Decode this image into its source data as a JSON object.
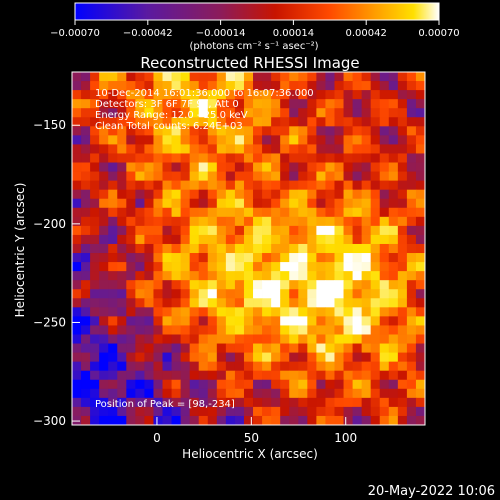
{
  "chart_data": {
    "type": "heatmap",
    "title": "Reconstructed RHESSI Image",
    "xlabel": "Heliocentric X (arcsec)",
    "ylabel": "Heliocentric Y (arcsec)",
    "xlim": [
      -45,
      142
    ],
    "ylim": [
      -302,
      -123
    ],
    "x_ticks": [
      0,
      50,
      100
    ],
    "x_tick_labels": [
      "0",
      "50",
      "100"
    ],
    "y_ticks": [
      -150,
      -200,
      -250,
      -300
    ],
    "y_tick_labels": [
      "−150",
      "−200",
      "−250",
      "−300"
    ],
    "colorbar": {
      "range": [
        -0.0007,
        0.0007
      ],
      "ticks": [
        -0.0007,
        -0.00042,
        -0.00014,
        0.00014,
        0.00042,
        0.0007
      ],
      "tick_labels": [
        "−0.00070",
        "−0.00042",
        "−0.00014",
        "0.00014",
        "0.00042",
        "0.00070"
      ],
      "unit_label": "(photons cm⁻² s⁻¹ asec⁻²)",
      "colormap": [
        "#0000ff",
        "#5b1aa0",
        "#8c1c5a",
        "#c81400",
        "#ff4a00",
        "#ff9a00",
        "#ffe000",
        "#ffffff"
      ]
    },
    "annotations": [
      "10-Dec-2014 16:01:36.000 to 16:07:36.000",
      "Detectors: 3F 6F 7F 9F, Att 0",
      "Energy Range: 12.0 - 25.0 keV",
      "Clean     Total counts: 6.24E+03"
    ],
    "peak_label": "Position of Peak = [98,-234]",
    "peak_position": [
      98,
      -234
    ],
    "bright_sources": [
      {
        "x": 30,
        "y": -230,
        "relative_intensity": 0.95
      },
      {
        "x": 98,
        "y": -234,
        "relative_intensity": 1.0
      },
      {
        "x": 20,
        "y": -135,
        "relative_intensity": 0.75
      }
    ],
    "grid": false,
    "legend": "none"
  },
  "footer": {
    "timestamp": "20-May-2022 10:06"
  }
}
